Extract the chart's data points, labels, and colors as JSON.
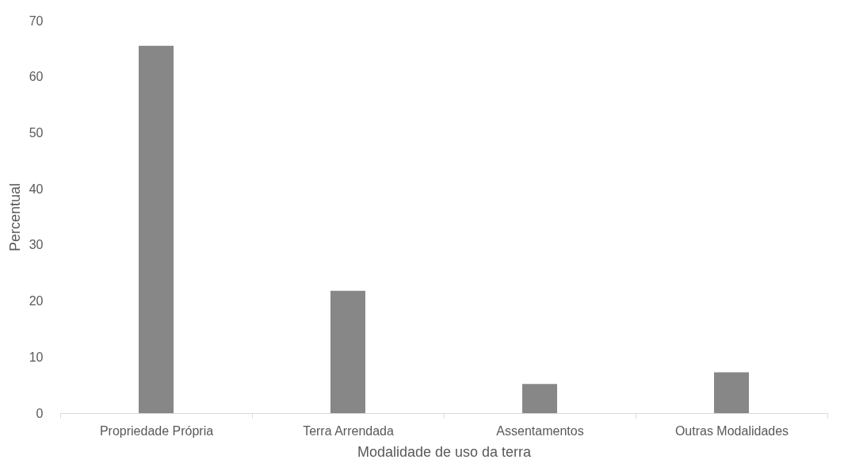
{
  "chart_data": {
    "type": "bar",
    "xlabel": "Modalidade de uso da terra",
    "ylabel": "Percentual",
    "categories": [
      "Propriedade Própria",
      "Terra Arrendada",
      "Assentamentos",
      "Outras Modalidades"
    ],
    "values": [
      65.5,
      21.8,
      5.2,
      7.3
    ],
    "color": "#878787",
    "ylim": [
      0,
      70
    ],
    "yticks": [
      0,
      10,
      20,
      30,
      40,
      50,
      60,
      70
    ],
    "grid": false
  }
}
